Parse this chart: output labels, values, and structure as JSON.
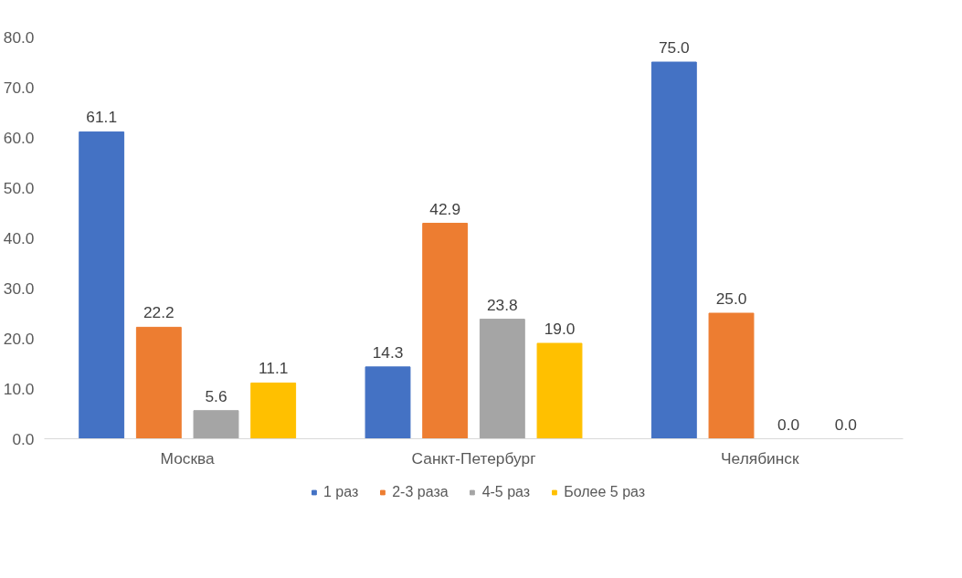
{
  "chart_data": {
    "type": "bar",
    "categories": [
      "Москва",
      "Санкт-Петербург",
      "Челябинск"
    ],
    "series": [
      {
        "name": "1 раз",
        "color": "#4472c4",
        "values": [
          61.1,
          14.3,
          75.0
        ],
        "value_labels": [
          "61.1",
          "14.3",
          "75.0"
        ]
      },
      {
        "name": "2-3 раза",
        "color": "#ed7d31",
        "values": [
          22.2,
          42.9,
          25.0
        ],
        "value_labels": [
          "22.2",
          "42.9",
          "25.0"
        ]
      },
      {
        "name": "4-5 раз",
        "color": "#a5a5a5",
        "values": [
          5.6,
          23.8,
          0.0
        ],
        "value_labels": [
          "5.6",
          "23.8",
          "0.0"
        ]
      },
      {
        "name": "Более 5 раз",
        "color": "#ffc000",
        "values": [
          11.1,
          19.0,
          0.0
        ],
        "value_labels": [
          "11.1",
          "19.0",
          "0.0"
        ]
      }
    ],
    "ylim": [
      0,
      80
    ],
    "yticks": [
      {
        "value": 0,
        "label": "0.0"
      },
      {
        "value": 10,
        "label": "10.0"
      },
      {
        "value": 20,
        "label": "20.0"
      },
      {
        "value": 30,
        "label": "30.0"
      },
      {
        "value": 40,
        "label": "40.0"
      },
      {
        "value": 50,
        "label": "50.0"
      },
      {
        "value": 60,
        "label": "60.0"
      },
      {
        "value": 70,
        "label": "70.0"
      },
      {
        "value": 80,
        "label": "80.0"
      }
    ],
    "grid": false,
    "legend": "bottom"
  }
}
